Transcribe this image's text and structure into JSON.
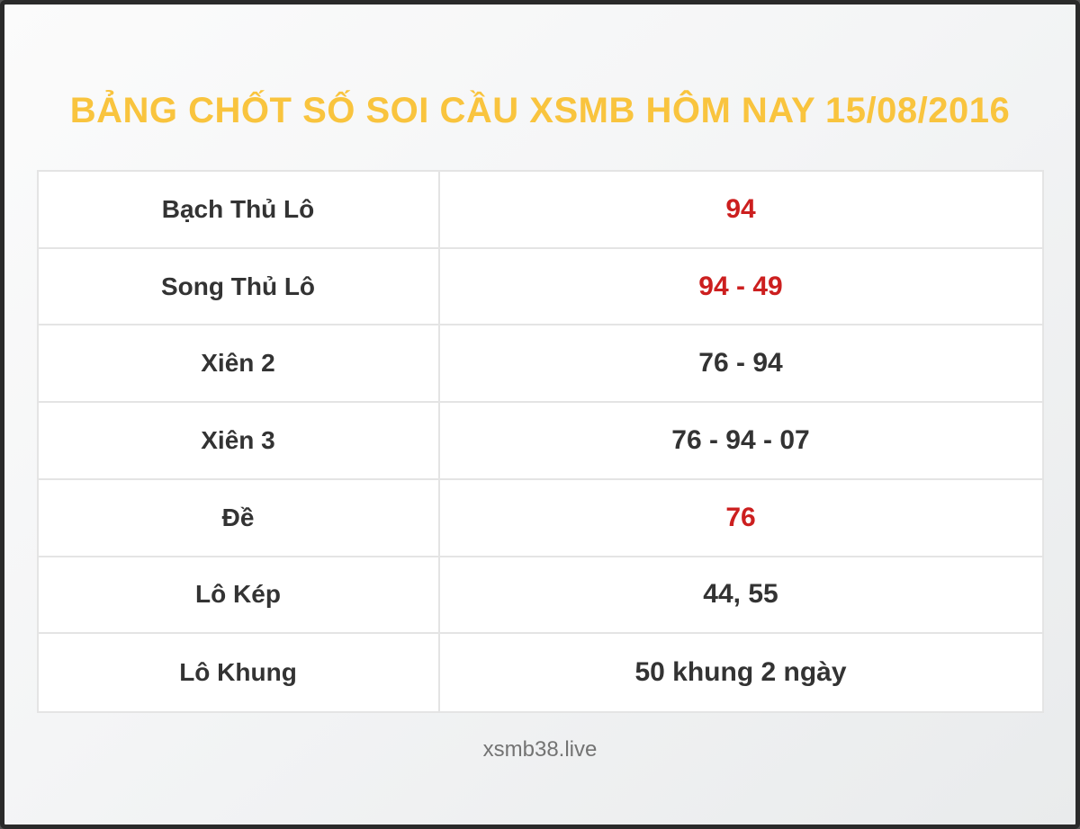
{
  "title": "BẢNG CHỐT SỐ SOI CẦU XSMB HÔM NAY 15/08/2016",
  "colors": {
    "title_yellow": "#f9c43e",
    "value_red": "#cc1f1f",
    "text_dark": "#333333",
    "frame_border": "#2a2a2a",
    "table_border": "#e4e4e4"
  },
  "table": {
    "rows": [
      {
        "label": "Bạch Thủ Lô",
        "value": "94",
        "highlight": true
      },
      {
        "label": "Song Thủ Lô",
        "value": "94 - 49",
        "highlight": true
      },
      {
        "label": "Xiên 2",
        "value": "76 - 94",
        "highlight": false
      },
      {
        "label": "Xiên 3",
        "value": "76 - 94 - 07",
        "highlight": false
      },
      {
        "label": "Đề",
        "value": "76",
        "highlight": true
      },
      {
        "label": "Lô Kép",
        "value": "44, 55",
        "highlight": false
      },
      {
        "label": "Lô Khung",
        "value": "50 khung 2 ngày",
        "highlight": false
      }
    ]
  },
  "footer": {
    "site": "xsmb38.live"
  }
}
